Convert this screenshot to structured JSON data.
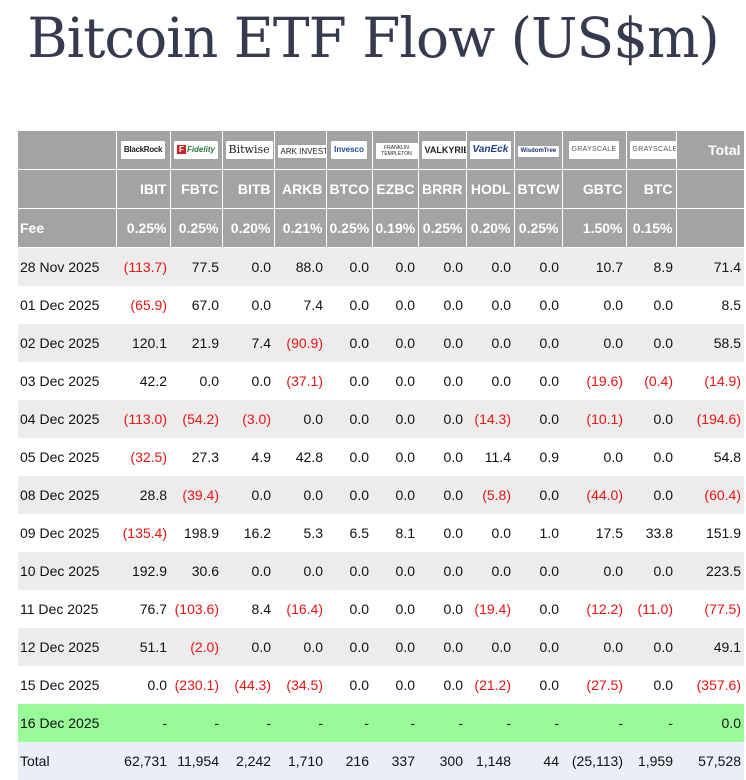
{
  "title": "Bitcoin ETF Flow (US$m)",
  "logos": [
    "BlackRock",
    "Fidelity",
    "Bitwise",
    "ARK INVEST",
    "Invesco",
    "FRANKLIN TEMPLETON",
    "VALKYRIE",
    "VanEck",
    "WisdomTree",
    "GRAYSCALE",
    "GRAYSCALE"
  ],
  "header": {
    "total_label": "Total",
    "fee_label": "Fee",
    "tickers": [
      "IBIT",
      "FBTC",
      "BITB",
      "ARKB",
      "BTCO",
      "EZBC",
      "BRRR",
      "HODL",
      "BTCW",
      "GBTC",
      "BTC"
    ],
    "fees": [
      "0.25%",
      "0.25%",
      "0.20%",
      "0.21%",
      "0.25%",
      "0.19%",
      "0.25%",
      "0.20%",
      "0.25%",
      "1.50%",
      "0.15%"
    ]
  },
  "rows": [
    {
      "date": "28 Nov 2025",
      "values": [
        "(113.7)",
        "77.5",
        "0.0",
        "88.0",
        "0.0",
        "0.0",
        "0.0",
        "0.0",
        "0.0",
        "10.7",
        "8.9"
      ],
      "total": "71.4"
    },
    {
      "date": "01 Dec 2025",
      "values": [
        "(65.9)",
        "67.0",
        "0.0",
        "7.4",
        "0.0",
        "0.0",
        "0.0",
        "0.0",
        "0.0",
        "0.0",
        "0.0"
      ],
      "total": "8.5"
    },
    {
      "date": "02 Dec 2025",
      "values": [
        "120.1",
        "21.9",
        "7.4",
        "(90.9)",
        "0.0",
        "0.0",
        "0.0",
        "0.0",
        "0.0",
        "0.0",
        "0.0"
      ],
      "total": "58.5"
    },
    {
      "date": "03 Dec 2025",
      "values": [
        "42.2",
        "0.0",
        "0.0",
        "(37.1)",
        "0.0",
        "0.0",
        "0.0",
        "0.0",
        "0.0",
        "(19.6)",
        "(0.4)"
      ],
      "total": "(14.9)"
    },
    {
      "date": "04 Dec 2025",
      "values": [
        "(113.0)",
        "(54.2)",
        "(3.0)",
        "0.0",
        "0.0",
        "0.0",
        "0.0",
        "(14.3)",
        "0.0",
        "(10.1)",
        "0.0"
      ],
      "total": "(194.6)"
    },
    {
      "date": "05 Dec 2025",
      "values": [
        "(32.5)",
        "27.3",
        "4.9",
        "42.8",
        "0.0",
        "0.0",
        "0.0",
        "11.4",
        "0.9",
        "0.0",
        "0.0"
      ],
      "total": "54.8"
    },
    {
      "date": "08 Dec 2025",
      "values": [
        "28.8",
        "(39.4)",
        "0.0",
        "0.0",
        "0.0",
        "0.0",
        "0.0",
        "(5.8)",
        "0.0",
        "(44.0)",
        "0.0"
      ],
      "total": "(60.4)"
    },
    {
      "date": "09 Dec 2025",
      "values": [
        "(135.4)",
        "198.9",
        "16.2",
        "5.3",
        "6.5",
        "8.1",
        "0.0",
        "0.0",
        "1.0",
        "17.5",
        "33.8"
      ],
      "total": "151.9"
    },
    {
      "date": "10 Dec 2025",
      "values": [
        "192.9",
        "30.6",
        "0.0",
        "0.0",
        "0.0",
        "0.0",
        "0.0",
        "0.0",
        "0.0",
        "0.0",
        "0.0"
      ],
      "total": "223.5"
    },
    {
      "date": "11 Dec 2025",
      "values": [
        "76.7",
        "(103.6)",
        "8.4",
        "(16.4)",
        "0.0",
        "0.0",
        "0.0",
        "(19.4)",
        "0.0",
        "(12.2)",
        "(11.0)"
      ],
      "total": "(77.5)"
    },
    {
      "date": "12 Dec 2025",
      "values": [
        "51.1",
        "(2.0)",
        "0.0",
        "0.0",
        "0.0",
        "0.0",
        "0.0",
        "0.0",
        "0.0",
        "0.0",
        "0.0"
      ],
      "total": "49.1"
    },
    {
      "date": "15 Dec 2025",
      "values": [
        "0.0",
        "(230.1)",
        "(44.3)",
        "(34.5)",
        "0.0",
        "0.0",
        "0.0",
        "(21.2)",
        "0.0",
        "(27.5)",
        "0.0"
      ],
      "total": "(357.6)"
    },
    {
      "date": "16 Dec 2025",
      "values": [
        "-",
        "-",
        "-",
        "-",
        "-",
        "-",
        "-",
        "-",
        "-",
        "-",
        "-"
      ],
      "total": "0.0",
      "highlight": true
    }
  ],
  "totals": {
    "label": "Total",
    "values": [
      "62,731",
      "11,954",
      "2,242",
      "1,710",
      "216",
      "337",
      "300",
      "1,148",
      "44",
      "(25,113)",
      "1,959"
    ],
    "total": "57,528"
  },
  "colors": {
    "header_bg": "#a3a3a3",
    "negative": "#ee1111",
    "highlight_row": "#98fb98",
    "total_row": "#eaeef7",
    "title": "#353a4f"
  }
}
